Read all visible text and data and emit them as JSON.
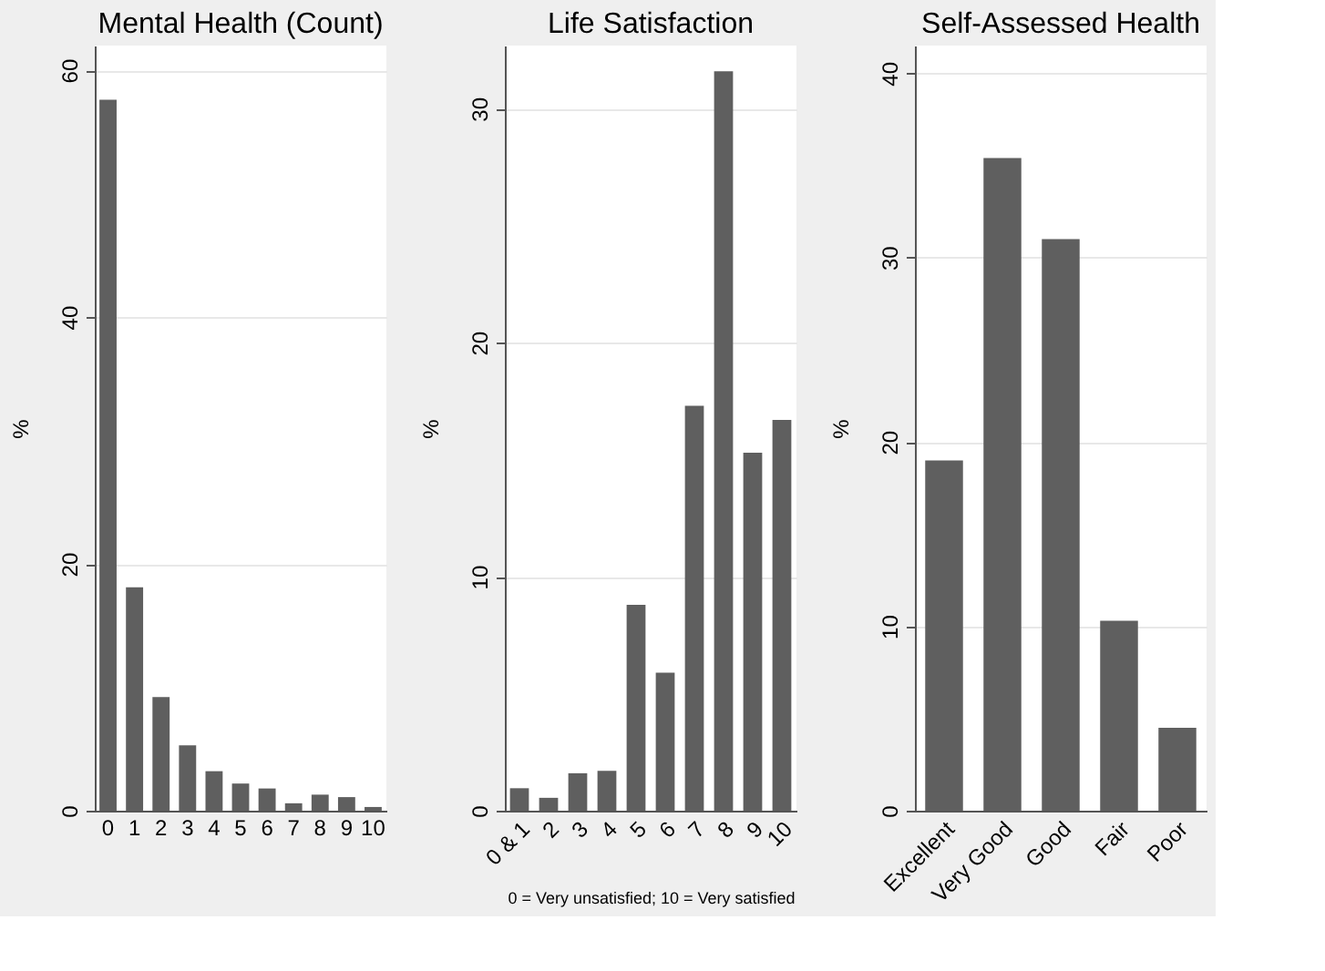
{
  "chart_data": [
    {
      "type": "bar",
      "title": "Mental Health (Count)",
      "ylabel": "%",
      "categories": [
        "0",
        "1",
        "2",
        "3",
        "4",
        "5",
        "6",
        "7",
        "8",
        "9",
        "10"
      ],
      "values": [
        57.6,
        18.1,
        9.2,
        5.3,
        3.2,
        2.2,
        1.8,
        0.6,
        1.3,
        1.1,
        0.3
      ],
      "color": "#5f5f5f",
      "ylim": [
        0,
        62
      ],
      "yticks": [
        0,
        20,
        40,
        60
      ],
      "grid": "y"
    },
    {
      "type": "bar",
      "title": "Life Satisfaction",
      "ylabel": "%",
      "categories": [
        "0 & 1",
        "2",
        "3",
        "4",
        "5",
        "6",
        "7",
        "8",
        "9",
        "10"
      ],
      "values": [
        0.96,
        0.55,
        1.6,
        1.7,
        8.8,
        5.9,
        17.3,
        31.6,
        15.3,
        16.7
      ],
      "color": "#5f5f5f",
      "ylim": [
        0,
        32.7
      ],
      "yticks": [
        0,
        10,
        20,
        30
      ],
      "grid": "y",
      "annotations": [
        "0 = Very unsatisfied; 10 = Very satisfied"
      ]
    },
    {
      "type": "bar",
      "title": "Self-Assessed Health",
      "ylabel": "%",
      "categories": [
        "Excellent",
        "Very Good",
        "Good",
        "Fair",
        "Poor"
      ],
      "values": [
        19.0,
        35.4,
        31.0,
        10.3,
        4.5
      ],
      "color": "#5f5f5f",
      "ylim": [
        0,
        41.5
      ],
      "yticks": [
        0,
        10,
        20,
        30,
        40
      ],
      "grid": "y"
    }
  ]
}
